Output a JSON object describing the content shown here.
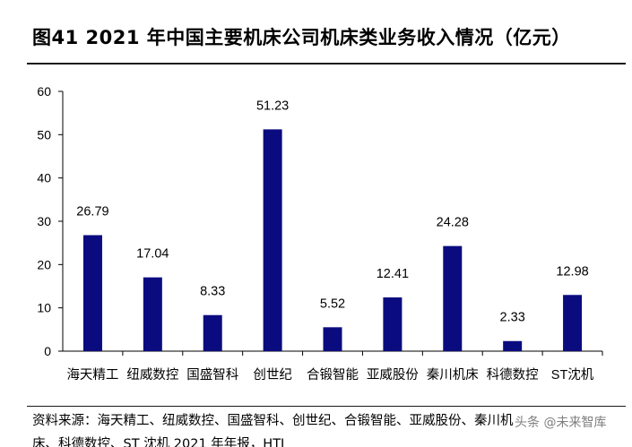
{
  "header": {
    "title": "图41 2021 年中国主要机床公司机床类业务收入情况（亿元）"
  },
  "footer": {
    "source": "资料来源：海天精工、纽威数控、国盛智科、创世纪、合锻智能、亚威股份、秦川机床、科德数控、ST 沈机 2021 年年报，HTI",
    "watermark": "头条 @未来智库"
  },
  "colors": {
    "bar": "#0b0b80",
    "axis": "#000000"
  },
  "chart_data": {
    "type": "bar",
    "title": "图41 2021 年中国主要机床公司机床类业务收入情况（亿元）",
    "categories": [
      "海天精工",
      "纽威数控",
      "国盛智科",
      "创世纪",
      "合锻智能",
      "亚威股份",
      "秦川机床",
      "科德数控",
      "ST沈机"
    ],
    "values": [
      26.79,
      17.04,
      8.33,
      51.23,
      5.52,
      12.41,
      24.28,
      2.33,
      12.98
    ],
    "value_labels": [
      "26.79",
      "17.04",
      "8.33",
      "51.23",
      "5.52",
      "12.41",
      "24.28",
      "2.33",
      "12.98"
    ],
    "ylim": [
      0,
      60
    ],
    "yticks": [
      0,
      10,
      20,
      30,
      40,
      50,
      60
    ],
    "xlabel": "",
    "ylabel": "",
    "grid": false,
    "legend": "none"
  }
}
